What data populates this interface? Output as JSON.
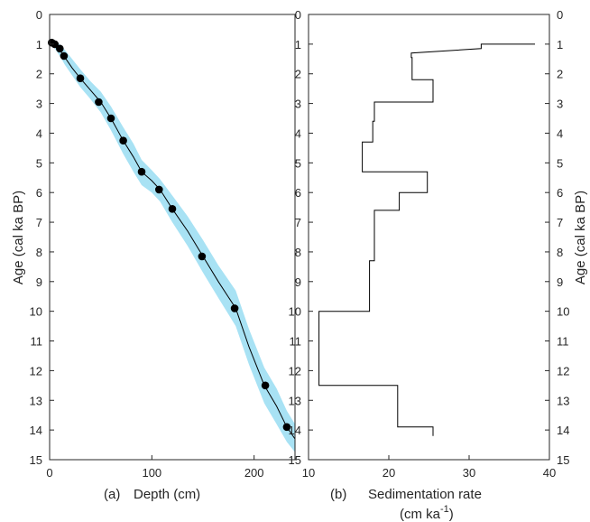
{
  "chart_data": [
    {
      "type": "line",
      "panel_label": "(a)",
      "xlabel": "Depth (cm)",
      "ylabel": "Age (cal ka BP)",
      "xlim": [
        0,
        240
      ],
      "ylim": [
        0,
        15
      ],
      "y_reversed": true,
      "xticks": [
        "0",
        "100",
        "200"
      ],
      "xtick_values": [
        0,
        100,
        200
      ],
      "yticks": [
        "0",
        "1",
        "2",
        "3",
        "4",
        "5",
        "6",
        "7",
        "8",
        "9",
        "10",
        "11",
        "12",
        "13",
        "14",
        "15"
      ],
      "yaxis_side": "left",
      "grid": false,
      "series": [
        {
          "role": "age-depth model",
          "color": "#000000",
          "x": [
            0,
            5,
            10,
            15,
            22,
            30,
            40,
            50,
            60,
            72,
            82,
            90,
            100,
            108,
            120,
            135,
            150,
            165,
            182,
            195,
            210,
            222,
            232,
            240
          ],
          "y": [
            0.95,
            1.05,
            1.2,
            1.45,
            1.8,
            2.15,
            2.55,
            2.95,
            3.5,
            4.25,
            4.8,
            5.3,
            5.6,
            5.9,
            6.55,
            7.3,
            8.15,
            9.0,
            9.9,
            11.2,
            12.5,
            13.2,
            13.9,
            14.3
          ]
        },
        {
          "role": "dated samples",
          "color": "#000000",
          "x": [
            2,
            5,
            10,
            14,
            30,
            48,
            60,
            72,
            90,
            107,
            120,
            149,
            181,
            211,
            232
          ],
          "y": [
            0.95,
            1.0,
            1.15,
            1.4,
            2.15,
            2.95,
            3.5,
            4.25,
            5.3,
            5.9,
            6.55,
            8.15,
            9.9,
            12.5,
            13.9
          ]
        },
        {
          "role": "uncertainty band",
          "color": "#a8e2f4",
          "x": [
            0,
            5,
            10,
            15,
            22,
            30,
            40,
            50,
            60,
            72,
            82,
            90,
            100,
            108,
            120,
            135,
            150,
            165,
            182,
            195,
            210,
            222,
            232,
            240
          ],
          "y_low": [
            0.85,
            0.9,
            1.0,
            1.2,
            1.5,
            1.85,
            2.25,
            2.6,
            3.1,
            3.8,
            4.35,
            4.9,
            5.25,
            5.55,
            6.1,
            6.8,
            7.6,
            8.45,
            9.3,
            10.6,
            11.9,
            12.6,
            13.35,
            13.8
          ],
          "y_high": [
            1.0,
            1.15,
            1.4,
            1.7,
            2.05,
            2.45,
            2.85,
            3.3,
            3.9,
            4.7,
            5.3,
            5.75,
            6.0,
            6.3,
            7.0,
            7.8,
            8.7,
            9.55,
            10.5,
            11.8,
            13.1,
            13.8,
            14.4,
            14.75
          ]
        }
      ]
    },
    {
      "type": "line",
      "panel_label": "(b)",
      "xlabel": "Sedimentation rate",
      "xlabel_units": "(cm ka",
      "xlabel_units_exponent": "-1",
      "xlabel_units_close": ")",
      "ylabel": "Age (cal ka BP)",
      "xlim": [
        10,
        40
      ],
      "ylim": [
        0,
        15
      ],
      "y_reversed": true,
      "xticks": [
        "10",
        "20",
        "30",
        "40"
      ],
      "xtick_values": [
        10,
        20,
        30,
        40
      ],
      "yticks": [
        "0",
        "1",
        "2",
        "3",
        "4",
        "5",
        "6",
        "7",
        "8",
        "9",
        "10",
        "11",
        "12",
        "13",
        "14",
        "15"
      ],
      "yaxis_side": "both",
      "grid": false,
      "series": [
        {
          "role": "sedimentation rate",
          "color": "#000000",
          "x": [
            38.2,
            31.5,
            31.5,
            22.8,
            22.8,
            22.9,
            22.9,
            25.5,
            25.5,
            18.2,
            18.2,
            18.0,
            18.0,
            16.7,
            16.7,
            24.8,
            24.8,
            21.3,
            21.3,
            18.2,
            18.2,
            17.6,
            17.6,
            11.3,
            11.3,
            21.1,
            21.1,
            25.5,
            25.5
          ],
          "y": [
            1.0,
            1.0,
            1.15,
            1.3,
            1.45,
            1.45,
            2.2,
            2.2,
            2.95,
            2.95,
            3.6,
            3.6,
            4.3,
            4.3,
            5.3,
            5.3,
            6.0,
            6.0,
            6.6,
            6.6,
            8.3,
            8.3,
            10.0,
            10.0,
            12.5,
            12.5,
            13.9,
            13.9,
            14.2
          ]
        }
      ]
    }
  ]
}
